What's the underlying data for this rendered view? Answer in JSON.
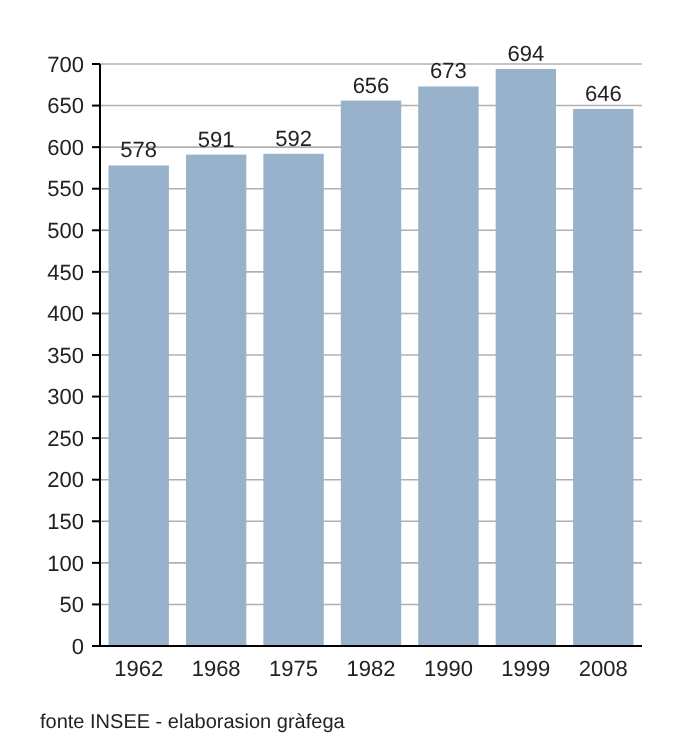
{
  "chart_data": {
    "type": "bar",
    "categories": [
      "1962",
      "1968",
      "1975",
      "1982",
      "1990",
      "1999",
      "2008"
    ],
    "values": [
      578,
      591,
      592,
      656,
      673,
      694,
      646
    ],
    "color": "#98b2cc",
    "data_labels": true,
    "ylim": [
      0,
      700
    ],
    "yticks": [
      0,
      50,
      100,
      150,
      200,
      250,
      300,
      350,
      400,
      450,
      500,
      550,
      600,
      650,
      700
    ],
    "grid": "y",
    "annotations": [
      "fonte INSEE - elaborasion gràfega"
    ]
  }
}
